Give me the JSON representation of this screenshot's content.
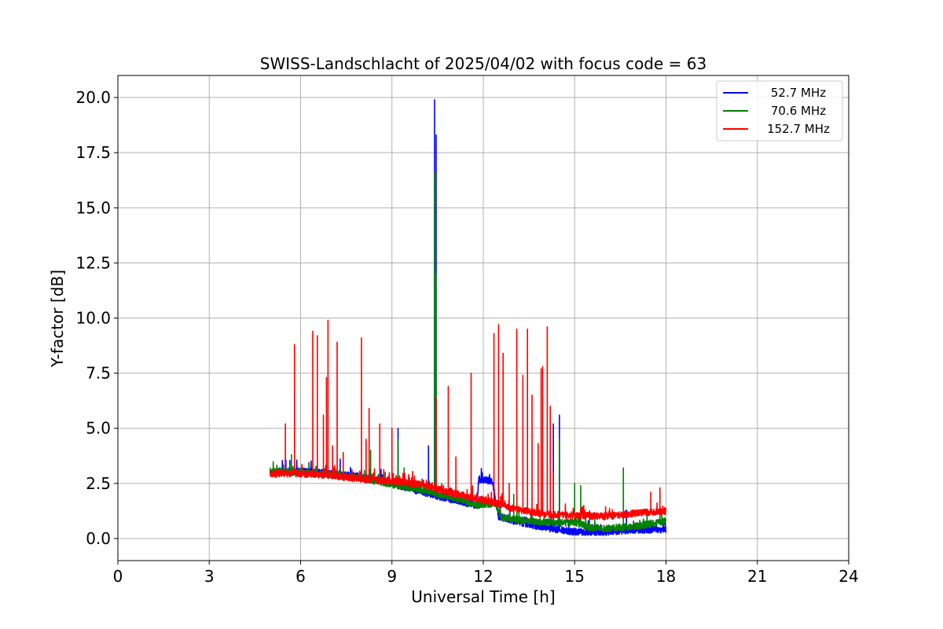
{
  "chart_data": {
    "type": "line",
    "title": "SWISS-Landschlacht of 2025/04/02 with focus code = 63",
    "xlabel": "Universal Time [h]",
    "ylabel": "Y-factor [dB]",
    "xlim": [
      0,
      24
    ],
    "ylim": [
      -1.0,
      21.0
    ],
    "xticks": [
      0,
      3,
      6,
      9,
      12,
      15,
      18,
      21,
      24
    ],
    "xtick_labels": [
      "0",
      "3",
      "6",
      "9",
      "12",
      "15",
      "18",
      "21",
      "24"
    ],
    "yticks": [
      0.0,
      2.5,
      5.0,
      7.5,
      10.0,
      12.5,
      15.0,
      17.5,
      20.0
    ],
    "ytick_labels": [
      "0.0",
      "2.5",
      "5.0",
      "7.5",
      "10.0",
      "12.5",
      "15.0",
      "17.5",
      "20.0"
    ],
    "grid": true,
    "legend_position": "top-right",
    "series": [
      {
        "name": "52.7 MHz",
        "color": "#0000ff",
        "baseline": [
          [
            5.0,
            3.0
          ],
          [
            6.0,
            3.05
          ],
          [
            7.0,
            2.95
          ],
          [
            8.0,
            2.8
          ],
          [
            9.0,
            2.5
          ],
          [
            10.0,
            2.1
          ],
          [
            11.0,
            1.75
          ],
          [
            11.8,
            1.5
          ],
          [
            11.85,
            2.7
          ],
          [
            12.3,
            2.6
          ],
          [
            12.5,
            1.0
          ],
          [
            13.0,
            0.8
          ],
          [
            14.0,
            0.5
          ],
          [
            15.0,
            0.3
          ],
          [
            16.0,
            0.3
          ],
          [
            17.0,
            0.4
          ],
          [
            18.0,
            0.4
          ]
        ],
        "spikes": [
          [
            5.5,
            3.6
          ],
          [
            7.3,
            3.6
          ],
          [
            9.2,
            5.0
          ],
          [
            10.2,
            4.2
          ],
          [
            10.4,
            19.9
          ],
          [
            10.45,
            18.3
          ],
          [
            14.3,
            5.2
          ],
          [
            14.5,
            5.6
          ],
          [
            16.7,
            1.3
          ]
        ]
      },
      {
        "name": "70.6 MHz",
        "color": "#008000",
        "baseline": [
          [
            5.0,
            3.05
          ],
          [
            6.0,
            3.0
          ],
          [
            7.0,
            2.9
          ],
          [
            8.0,
            2.75
          ],
          [
            9.0,
            2.45
          ],
          [
            10.0,
            2.2
          ],
          [
            11.0,
            1.85
          ],
          [
            11.8,
            1.5
          ],
          [
            12.4,
            1.6
          ],
          [
            12.6,
            0.95
          ],
          [
            13.5,
            0.8
          ],
          [
            14.5,
            0.7
          ],
          [
            15.0,
            0.75
          ],
          [
            15.5,
            0.5
          ],
          [
            16.0,
            0.45
          ],
          [
            17.0,
            0.55
          ],
          [
            18.0,
            0.8
          ]
        ],
        "spikes": [
          [
            5.7,
            3.8
          ],
          [
            8.3,
            4.0
          ],
          [
            9.2,
            4.5
          ],
          [
            9.4,
            3.2
          ],
          [
            10.4,
            16.6
          ],
          [
            10.45,
            12.0
          ],
          [
            13.0,
            2.0
          ],
          [
            14.5,
            4.5
          ],
          [
            15.0,
            2.5
          ],
          [
            15.2,
            2.4
          ],
          [
            16.6,
            3.2
          ],
          [
            17.8,
            1.3
          ]
        ]
      },
      {
        "name": "152.7 MHz",
        "color": "#ff0000",
        "baseline": [
          [
            5.0,
            2.95
          ],
          [
            6.0,
            2.95
          ],
          [
            7.0,
            2.85
          ],
          [
            8.0,
            2.7
          ],
          [
            9.0,
            2.6
          ],
          [
            10.0,
            2.45
          ],
          [
            11.0,
            2.05
          ],
          [
            12.0,
            1.75
          ],
          [
            12.6,
            1.55
          ],
          [
            13.0,
            1.35
          ],
          [
            14.0,
            1.1
          ],
          [
            15.0,
            1.05
          ],
          [
            16.0,
            1.0
          ],
          [
            17.0,
            1.15
          ],
          [
            18.0,
            1.25
          ]
        ],
        "spikes": [
          [
            5.5,
            5.2
          ],
          [
            5.8,
            8.8
          ],
          [
            6.4,
            9.4
          ],
          [
            6.55,
            9.2
          ],
          [
            6.75,
            5.6
          ],
          [
            6.85,
            7.3
          ],
          [
            6.9,
            9.9
          ],
          [
            7.05,
            4.2
          ],
          [
            7.2,
            8.9
          ],
          [
            7.4,
            3.9
          ],
          [
            8.0,
            9.1
          ],
          [
            8.15,
            4.5
          ],
          [
            8.25,
            5.9
          ],
          [
            8.6,
            5.2
          ],
          [
            9.0,
            5.0
          ],
          [
            10.45,
            6.4
          ],
          [
            10.85,
            6.9
          ],
          [
            11.1,
            3.7
          ],
          [
            11.6,
            7.5
          ],
          [
            12.35,
            9.3
          ],
          [
            12.5,
            9.7
          ],
          [
            12.65,
            8.4
          ],
          [
            12.85,
            2.5
          ],
          [
            13.1,
            9.5
          ],
          [
            13.3,
            7.4
          ],
          [
            13.45,
            9.5
          ],
          [
            13.6,
            6.5
          ],
          [
            13.8,
            4.3
          ],
          [
            13.9,
            7.7
          ],
          [
            13.95,
            7.8
          ],
          [
            14.1,
            9.6
          ],
          [
            14.2,
            6.0
          ],
          [
            14.3,
            3.0
          ],
          [
            15.3,
            1.5
          ],
          [
            16.0,
            1.2
          ],
          [
            17.5,
            2.1
          ],
          [
            17.8,
            2.3
          ]
        ]
      }
    ]
  }
}
